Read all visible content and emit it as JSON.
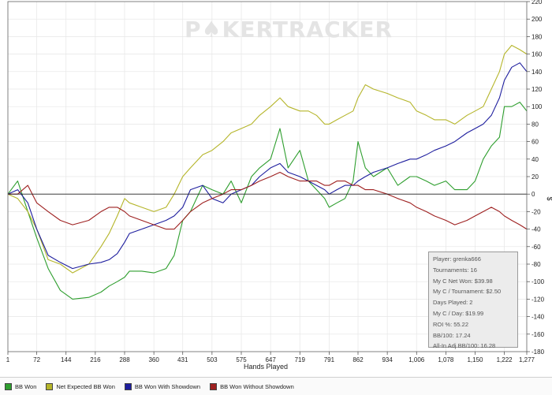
{
  "watermark": {
    "left": "P",
    "chip": "♠",
    "right": "KERTRACKER"
  },
  "chart_data": {
    "type": "line",
    "xlabel": "Hands Played",
    "ylabel": "$",
    "xlim": [
      1,
      1277
    ],
    "ylim": [
      -180,
      220
    ],
    "x_ticks": [
      {
        "v": 1,
        "label": "1"
      },
      {
        "v": 72,
        "label": "72"
      },
      {
        "v": 144,
        "label": "144"
      },
      {
        "v": 216,
        "label": "216"
      },
      {
        "v": 288,
        "label": "288"
      },
      {
        "v": 360,
        "label": "360"
      },
      {
        "v": 431,
        "label": "431"
      },
      {
        "v": 503,
        "label": "503"
      },
      {
        "v": 575,
        "label": "575"
      },
      {
        "v": 647,
        "label": "647"
      },
      {
        "v": 719,
        "label": "719"
      },
      {
        "v": 791,
        "label": "791"
      },
      {
        "v": 862,
        "label": "862"
      },
      {
        "v": 934,
        "label": "934"
      },
      {
        "v": 1006,
        "label": "1,006"
      },
      {
        "v": 1078,
        "label": "1,078"
      },
      {
        "v": 1150,
        "label": "1,150"
      },
      {
        "v": 1222,
        "label": "1,222"
      },
      {
        "v": 1277,
        "label": "1,277"
      }
    ],
    "y_ticks": [
      220,
      200,
      180,
      160,
      140,
      120,
      100,
      80,
      60,
      40,
      20,
      0,
      -20,
      -40,
      -60,
      -80,
      -100,
      -120,
      -140,
      -160,
      -180
    ],
    "grid": true,
    "legend_position": "bottom",
    "series": [
      {
        "name": "BB Won",
        "color": "#2e9e2e",
        "points": [
          [
            1,
            0
          ],
          [
            25,
            15
          ],
          [
            50,
            -20
          ],
          [
            72,
            -50
          ],
          [
            100,
            -85
          ],
          [
            130,
            -110
          ],
          [
            160,
            -120
          ],
          [
            200,
            -118
          ],
          [
            230,
            -112
          ],
          [
            250,
            -105
          ],
          [
            270,
            -100
          ],
          [
            288,
            -95
          ],
          [
            300,
            -88
          ],
          [
            330,
            -88
          ],
          [
            360,
            -90
          ],
          [
            390,
            -85
          ],
          [
            410,
            -70
          ],
          [
            431,
            -30
          ],
          [
            450,
            -20
          ],
          [
            480,
            10
          ],
          [
            503,
            5
          ],
          [
            530,
            0
          ],
          [
            550,
            15
          ],
          [
            575,
            -10
          ],
          [
            600,
            20
          ],
          [
            620,
            30
          ],
          [
            647,
            40
          ],
          [
            670,
            75
          ],
          [
            690,
            30
          ],
          [
            719,
            50
          ],
          [
            740,
            15
          ],
          [
            760,
            5
          ],
          [
            780,
            -5
          ],
          [
            791,
            -15
          ],
          [
            810,
            -10
          ],
          [
            830,
            -5
          ],
          [
            850,
            15
          ],
          [
            862,
            60
          ],
          [
            880,
            30
          ],
          [
            900,
            20
          ],
          [
            934,
            30
          ],
          [
            960,
            10
          ],
          [
            990,
            20
          ],
          [
            1006,
            20
          ],
          [
            1030,
            15
          ],
          [
            1050,
            10
          ],
          [
            1078,
            15
          ],
          [
            1100,
            5
          ],
          [
            1130,
            5
          ],
          [
            1150,
            15
          ],
          [
            1170,
            40
          ],
          [
            1190,
            55
          ],
          [
            1210,
            65
          ],
          [
            1222,
            100
          ],
          [
            1240,
            100
          ],
          [
            1260,
            105
          ],
          [
            1277,
            95
          ]
        ]
      },
      {
        "name": "Net Expected BB Won",
        "color": "#b5b52a",
        "points": [
          [
            1,
            0
          ],
          [
            25,
            -5
          ],
          [
            50,
            -20
          ],
          [
            72,
            -40
          ],
          [
            100,
            -75
          ],
          [
            130,
            -80
          ],
          [
            160,
            -90
          ],
          [
            200,
            -80
          ],
          [
            230,
            -60
          ],
          [
            250,
            -45
          ],
          [
            270,
            -25
          ],
          [
            288,
            -5
          ],
          [
            300,
            -10
          ],
          [
            330,
            -15
          ],
          [
            360,
            -20
          ],
          [
            390,
            -15
          ],
          [
            410,
            0
          ],
          [
            431,
            20
          ],
          [
            450,
            30
          ],
          [
            480,
            45
          ],
          [
            503,
            50
          ],
          [
            530,
            60
          ],
          [
            550,
            70
          ],
          [
            575,
            75
          ],
          [
            600,
            80
          ],
          [
            620,
            90
          ],
          [
            647,
            100
          ],
          [
            670,
            110
          ],
          [
            690,
            100
          ],
          [
            719,
            95
          ],
          [
            740,
            95
          ],
          [
            760,
            90
          ],
          [
            780,
            80
          ],
          [
            791,
            80
          ],
          [
            810,
            85
          ],
          [
            830,
            90
          ],
          [
            850,
            95
          ],
          [
            862,
            110
          ],
          [
            880,
            125
          ],
          [
            900,
            120
          ],
          [
            934,
            115
          ],
          [
            960,
            110
          ],
          [
            990,
            105
          ],
          [
            1006,
            95
          ],
          [
            1030,
            90
          ],
          [
            1050,
            85
          ],
          [
            1078,
            85
          ],
          [
            1100,
            80
          ],
          [
            1130,
            90
          ],
          [
            1150,
            95
          ],
          [
            1170,
            100
          ],
          [
            1190,
            120
          ],
          [
            1210,
            140
          ],
          [
            1222,
            160
          ],
          [
            1240,
            170
          ],
          [
            1260,
            165
          ],
          [
            1277,
            160
          ]
        ]
      },
      {
        "name": "BB Won With Showdown",
        "color": "#1e1e9e",
        "points": [
          [
            1,
            0
          ],
          [
            25,
            5
          ],
          [
            50,
            -10
          ],
          [
            72,
            -40
          ],
          [
            100,
            -70
          ],
          [
            130,
            -78
          ],
          [
            160,
            -85
          ],
          [
            200,
            -80
          ],
          [
            230,
            -78
          ],
          [
            250,
            -75
          ],
          [
            270,
            -68
          ],
          [
            288,
            -55
          ],
          [
            300,
            -45
          ],
          [
            330,
            -40
          ],
          [
            360,
            -35
          ],
          [
            390,
            -30
          ],
          [
            410,
            -25
          ],
          [
            431,
            -15
          ],
          [
            450,
            5
          ],
          [
            480,
            10
          ],
          [
            503,
            -5
          ],
          [
            530,
            -10
          ],
          [
            550,
            0
          ],
          [
            575,
            5
          ],
          [
            600,
            10
          ],
          [
            620,
            20
          ],
          [
            647,
            30
          ],
          [
            670,
            35
          ],
          [
            690,
            25
          ],
          [
            719,
            20
          ],
          [
            740,
            15
          ],
          [
            760,
            10
          ],
          [
            780,
            5
          ],
          [
            791,
            0
          ],
          [
            810,
            5
          ],
          [
            830,
            10
          ],
          [
            850,
            10
          ],
          [
            862,
            15
          ],
          [
            880,
            20
          ],
          [
            900,
            25
          ],
          [
            934,
            30
          ],
          [
            960,
            35
          ],
          [
            990,
            40
          ],
          [
            1006,
            40
          ],
          [
            1030,
            45
          ],
          [
            1050,
            50
          ],
          [
            1078,
            55
          ],
          [
            1100,
            60
          ],
          [
            1130,
            70
          ],
          [
            1150,
            75
          ],
          [
            1170,
            80
          ],
          [
            1190,
            90
          ],
          [
            1210,
            110
          ],
          [
            1222,
            130
          ],
          [
            1240,
            145
          ],
          [
            1260,
            150
          ],
          [
            1277,
            140
          ]
        ]
      },
      {
        "name": "BB Won Without Showdown",
        "color": "#9e2020",
        "points": [
          [
            1,
            0
          ],
          [
            25,
            0
          ],
          [
            50,
            10
          ],
          [
            72,
            -10
          ],
          [
            100,
            -20
          ],
          [
            130,
            -30
          ],
          [
            160,
            -35
          ],
          [
            200,
            -30
          ],
          [
            230,
            -20
          ],
          [
            250,
            -15
          ],
          [
            270,
            -15
          ],
          [
            288,
            -20
          ],
          [
            300,
            -25
          ],
          [
            330,
            -30
          ],
          [
            360,
            -35
          ],
          [
            390,
            -40
          ],
          [
            410,
            -40
          ],
          [
            431,
            -30
          ],
          [
            450,
            -20
          ],
          [
            480,
            -10
          ],
          [
            503,
            -5
          ],
          [
            530,
            0
          ],
          [
            550,
            5
          ],
          [
            575,
            5
          ],
          [
            600,
            10
          ],
          [
            620,
            15
          ],
          [
            647,
            20
          ],
          [
            670,
            25
          ],
          [
            690,
            20
          ],
          [
            719,
            15
          ],
          [
            740,
            15
          ],
          [
            760,
            15
          ],
          [
            780,
            10
          ],
          [
            791,
            10
          ],
          [
            810,
            15
          ],
          [
            830,
            15
          ],
          [
            850,
            10
          ],
          [
            862,
            10
          ],
          [
            880,
            5
          ],
          [
            900,
            5
          ],
          [
            934,
            0
          ],
          [
            960,
            -5
          ],
          [
            990,
            -10
          ],
          [
            1006,
            -15
          ],
          [
            1030,
            -20
          ],
          [
            1050,
            -25
          ],
          [
            1078,
            -30
          ],
          [
            1100,
            -35
          ],
          [
            1130,
            -30
          ],
          [
            1150,
            -25
          ],
          [
            1170,
            -20
          ],
          [
            1190,
            -15
          ],
          [
            1210,
            -20
          ],
          [
            1222,
            -25
          ],
          [
            1240,
            -30
          ],
          [
            1260,
            -35
          ],
          [
            1277,
            -40
          ]
        ]
      }
    ]
  },
  "stats": [
    "Player: grenka666",
    "Tournaments: 16",
    "My C Net Won: $39.98",
    "My C / Tournament: $2.50",
    "Days Played: 2",
    "My C / Day: $19.99",
    "ROI %: 55.22",
    "BB/100: 17.24",
    "All-In Adj BB/100: 16.28"
  ]
}
